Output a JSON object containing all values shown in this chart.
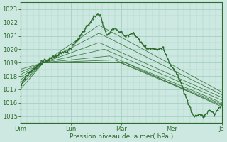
{
  "title": "",
  "xlabel": "Pression niveau de la mer( hPa )",
  "background_color": "#cce8e0",
  "grid_color": "#aad4c8",
  "line_color": "#2d6a2d",
  "text_color": "#2d6a2d",
  "ylim": [
    1014.5,
    1023.5
  ],
  "yticks": [
    1015,
    1016,
    1017,
    1018,
    1019,
    1020,
    1021,
    1022,
    1023
  ],
  "x_day_labels": [
    "Dim",
    "Lun",
    "Mar",
    "Mer",
    "Je"
  ],
  "x_day_positions": [
    0,
    48,
    96,
    144,
    192
  ],
  "num_points": 193
}
